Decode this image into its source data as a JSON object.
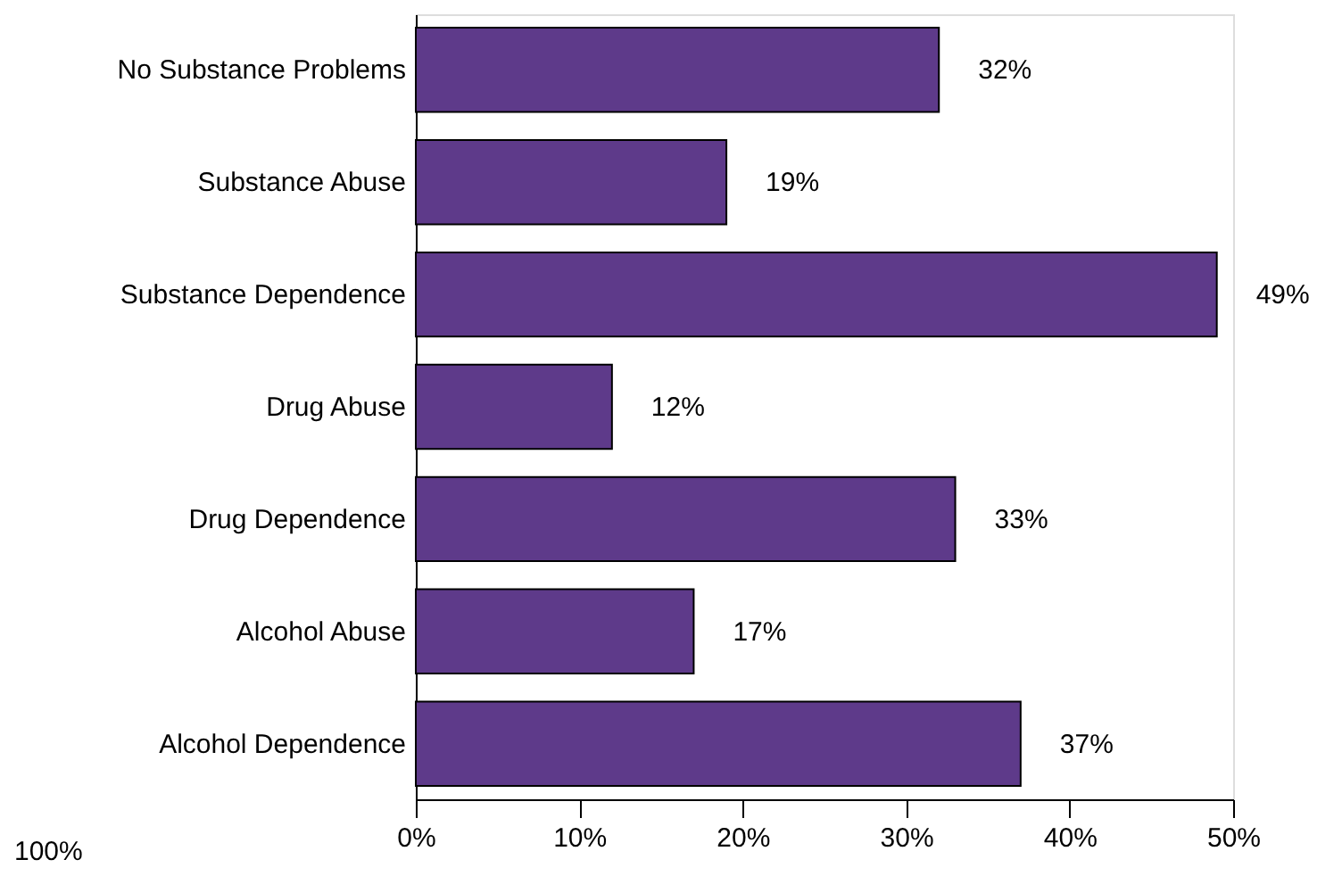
{
  "chart_data": {
    "type": "bar",
    "orientation": "horizontal",
    "categories": [
      "No Substance Problems",
      "Substance Abuse",
      "Substance Dependence",
      "Drug Abuse",
      "Drug Dependence",
      "Alcohol Abuse",
      "Alcohol Dependence"
    ],
    "values": [
      32,
      19,
      49,
      12,
      33,
      17,
      37
    ],
    "value_labels": [
      "32%",
      "19%",
      "49%",
      "12%",
      "33%",
      "17%",
      "37%"
    ],
    "color": "#5e3a8a",
    "xlim": [
      0,
      50
    ],
    "xticks": [
      {
        "value": 0,
        "label": "0%"
      },
      {
        "value": 10,
        "label": "10%"
      },
      {
        "value": 20,
        "label": "20%"
      },
      {
        "value": 30,
        "label": "30%"
      },
      {
        "value": 40,
        "label": "40%"
      },
      {
        "value": 50,
        "label": "50%"
      }
    ],
    "annotations": [
      "100%"
    ],
    "grid": false
  }
}
